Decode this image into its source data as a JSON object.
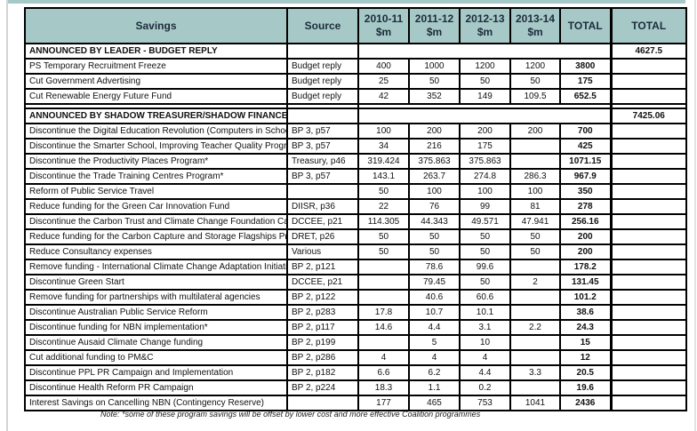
{
  "colors": {
    "header_bg": "#A6C9C7",
    "header_text": "#1C2B3B",
    "border": "#000000",
    "top_strip": "#A6C9C7"
  },
  "table": {
    "headers": [
      {
        "label": "Savings",
        "sub": ""
      },
      {
        "label": "Source",
        "sub": ""
      },
      {
        "label": "2010-11",
        "sub": "$m"
      },
      {
        "label": "2011-12",
        "sub": "$m"
      },
      {
        "label": "2012-13",
        "sub": "$m"
      },
      {
        "label": "2013-14",
        "sub": "$m"
      },
      {
        "label": "TOTAL",
        "sub": ""
      },
      {
        "label": "TOTAL",
        "sub": ""
      }
    ],
    "rows": [
      {
        "type": "section",
        "savings": "ANNOUNCED BY LEADER - BUDGET REPLY",
        "source": "",
        "y2010": "",
        "y2011": "",
        "y2012": "",
        "y2013": "",
        "total": "",
        "grand_total": "4627.5"
      },
      {
        "type": "data",
        "savings": "PS Temporary Recruitment Freeze",
        "source": "Budget reply",
        "y2010": "400",
        "y2011": "1000",
        "y2012": "1200",
        "y2013": "1200",
        "total": "3800",
        "grand_total": ""
      },
      {
        "type": "data",
        "savings": "Cut Government Advertising",
        "source": "Budget reply",
        "y2010": "25",
        "y2011": "50",
        "y2012": "50",
        "y2013": "50",
        "total": "175",
        "grand_total": ""
      },
      {
        "type": "data",
        "savings": "Cut Renewable Energy Future Fund",
        "source": "Budget reply",
        "y2010": "42",
        "y2011": "352",
        "y2012": "149",
        "y2013": "109.5",
        "total": "652.5",
        "grand_total": ""
      },
      {
        "type": "section",
        "savings": "ANNOUNCED BY SHADOW TREASURER/SHADOW FINANCE",
        "source": "",
        "y2010": "",
        "y2011": "",
        "y2012": "",
        "y2013": "",
        "total": "",
        "grand_total": "7425.06"
      },
      {
        "type": "data",
        "savings": "Discontinue the Digital Education Revolution (Computers in Schools)*",
        "source": "BP 3, p57",
        "y2010": "100",
        "y2011": "200",
        "y2012": "200",
        "y2013": "200",
        "total": "700",
        "grand_total": ""
      },
      {
        "type": "data",
        "savings": "Discontinue the Smarter School, Improving Teacher Quality Program*",
        "source": "BP 3, p57",
        "y2010": "34",
        "y2011": "216",
        "y2012": "175",
        "y2013": "",
        "total": "425",
        "grand_total": ""
      },
      {
        "type": "data",
        "savings": "Discontinue the Productivity Places Program*",
        "source": "Treasury, p46",
        "y2010": "319.424",
        "y2011": "375.863",
        "y2012": "375.863",
        "y2013": "",
        "total": "1071.15",
        "grand_total": ""
      },
      {
        "type": "data",
        "savings": "Discontinue the Trade Training Centres Program*",
        "source": "BP 3, p57",
        "y2010": "143.1",
        "y2011": "263.7",
        "y2012": "274.8",
        "y2013": "286.3",
        "total": "967.9",
        "grand_total": ""
      },
      {
        "type": "data",
        "savings": "Reform of Public Service Travel",
        "source": "",
        "y2010": "50",
        "y2011": "100",
        "y2012": "100",
        "y2013": "100",
        "total": "350",
        "grand_total": ""
      },
      {
        "type": "data",
        "savings": "Reduce funding for the Green Car Innovation Fund",
        "source": "DIISR, p36",
        "y2010": "22",
        "y2011": "76",
        "y2012": "99",
        "y2013": "81",
        "total": "278",
        "grand_total": ""
      },
      {
        "type": "data",
        "savings": "Discontinue the Carbon Trust and Climate Change Foundation Campaign",
        "source": "DCCEE, p21",
        "y2010": "114.305",
        "y2011": "44.343",
        "y2012": "49.571",
        "y2013": "47.941",
        "total": "256.16",
        "grand_total": ""
      },
      {
        "type": "data",
        "savings": "Reduce funding for the Carbon Capture and Storage Flagships Program",
        "source": "DRET, p26",
        "y2010": "50",
        "y2011": "50",
        "y2012": "50",
        "y2013": "50",
        "total": "200",
        "grand_total": ""
      },
      {
        "type": "data",
        "savings": "Reduce Consultancy expenses",
        "source": "Various",
        "y2010": "50",
        "y2011": "50",
        "y2012": "50",
        "y2013": "50",
        "total": "200",
        "grand_total": ""
      },
      {
        "type": "data",
        "savings": "Remove funding - International Climate Change Adaptation Initiative",
        "source": "BP 2, p121",
        "y2010": "",
        "y2011": "78.6",
        "y2012": "99.6",
        "y2013": "",
        "total": "178.2",
        "grand_total": ""
      },
      {
        "type": "data",
        "savings": "Discontinue Green Start",
        "source": "DCCEE, p21",
        "y2010": "",
        "y2011": "79.45",
        "y2012": "50",
        "y2013": "2",
        "total": "131.45",
        "grand_total": ""
      },
      {
        "type": "data",
        "savings": "Remove funding for partnerships with multilateral agencies",
        "source": "BP 2, p122",
        "y2010": "",
        "y2011": "40.6",
        "y2012": "60.6",
        "y2013": "",
        "total": "101.2",
        "grand_total": ""
      },
      {
        "type": "data",
        "savings": "Discontinue Australian Public Service Reform",
        "source": "BP 2, p283",
        "y2010": "17.8",
        "y2011": "10.7",
        "y2012": "10.1",
        "y2013": "",
        "total": "38.6",
        "grand_total": ""
      },
      {
        "type": "data",
        "savings": "Discontinue funding for NBN implementation*",
        "source": "BP 2, p117",
        "y2010": "14.6",
        "y2011": "4.4",
        "y2012": "3.1",
        "y2013": "2.2",
        "total": "24.3",
        "grand_total": ""
      },
      {
        "type": "data",
        "savings": "Discontinue Ausaid Climate Change funding",
        "source": "BP 2, p199",
        "y2010": "",
        "y2011": "5",
        "y2012": "10",
        "y2013": "",
        "total": "15",
        "grand_total": ""
      },
      {
        "type": "data",
        "savings": "Cut additional funding to PM&C",
        "source": "BP 2, p286",
        "y2010": "4",
        "y2011": "4",
        "y2012": "4",
        "y2013": "",
        "total": "12",
        "grand_total": ""
      },
      {
        "type": "data",
        "savings": "Discontinue PPL PR Campaign and Implementation",
        "source": "BP 2, p182",
        "y2010": "6.6",
        "y2011": "6.2",
        "y2012": "4.4",
        "y2013": "3.3",
        "total": "20.5",
        "grand_total": ""
      },
      {
        "type": "data",
        "savings": "Discontinue Health Reform PR Campaign",
        "source": "BP 2, p224",
        "y2010": "18.3",
        "y2011": "1.1",
        "y2012": "0.2",
        "y2013": "",
        "total": "19.6",
        "grand_total": ""
      },
      {
        "type": "data",
        "savings": "Interest Savings on Cancelling NBN (Contingency Reserve)",
        "source": "",
        "y2010": "177",
        "y2011": "465",
        "y2012": "753",
        "y2013": "1041",
        "total": "2436",
        "grand_total": ""
      }
    ],
    "note": "Note: *some of these program savings will be offset by lower cost and more effective Coalition programmes"
  }
}
